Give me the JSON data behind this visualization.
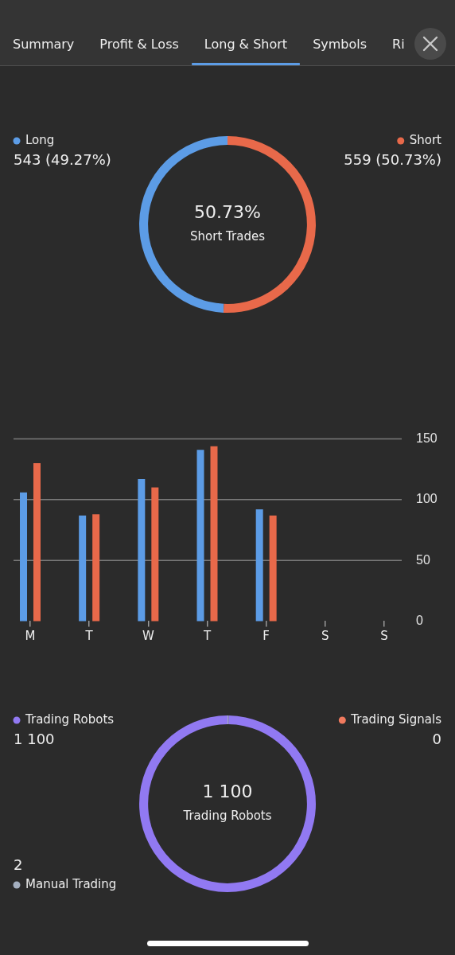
{
  "chart_data": [
    {
      "type": "other",
      "annotations": [
        "Summary",
        "Profit & Loss",
        "Long & Short",
        "Symbols",
        "Ri"
      ]
    },
    {
      "type": "donut",
      "categories": [
        "Long",
        "Short"
      ],
      "values": [
        543,
        559
      ],
      "colors": [
        "#5c9ce6",
        "#e8694a"
      ],
      "value_labels": [
        "543 (49.27%)",
        "559 (50.73%)"
      ],
      "annotations": [
        "50.73%",
        "Short Trades"
      ],
      "legend": "top"
    },
    {
      "type": "bar",
      "categories": [
        "M",
        "T",
        "W",
        "T",
        "F",
        "S",
        "S"
      ],
      "series": [
        {
          "color": "#5c9ce6",
          "values": [
            106,
            87,
            117,
            141,
            92,
            null,
            null
          ]
        },
        {
          "color": "#e8694a",
          "values": [
            130,
            88,
            110,
            144,
            87,
            null,
            null
          ]
        }
      ],
      "ylim": [
        0,
        150
      ],
      "yticks": [
        0,
        50,
        100,
        150
      ],
      "grid": "y"
    },
    {
      "type": "donut",
      "categories": [
        "Trading Robots",
        "Trading Signals",
        "Manual Trading"
      ],
      "values": [
        1100,
        0,
        2
      ],
      "colors": [
        "#9179f2",
        "#f07a5e",
        "#a4afbf"
      ],
      "value_labels": [
        "1 100",
        "0",
        "2"
      ],
      "annotations": [
        "1 100",
        "Trading Robots"
      ],
      "legend": "top"
    }
  ]
}
